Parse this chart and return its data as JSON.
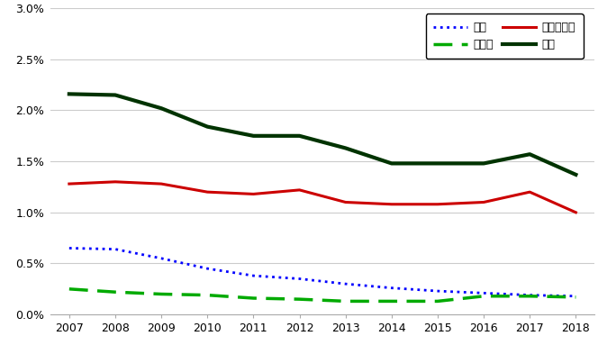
{
  "years": [
    2007,
    2008,
    2009,
    2010,
    2011,
    2012,
    2013,
    2014,
    2015,
    2016,
    2017,
    2018
  ],
  "tosan": [
    0.0065,
    0.0064,
    0.0055,
    0.0045,
    0.0038,
    0.0035,
    0.003,
    0.0026,
    0.0023,
    0.0021,
    0.0019,
    0.0018
  ],
  "jishu": [
    0.0128,
    0.013,
    0.0128,
    0.012,
    0.0118,
    0.0122,
    0.011,
    0.0108,
    0.0108,
    0.011,
    0.012,
    0.01
  ],
  "merged": [
    0.0025,
    0.0022,
    0.002,
    0.0019,
    0.0016,
    0.0015,
    0.0013,
    0.0013,
    0.0013,
    0.0018,
    0.0018,
    0.0017
  ],
  "total": [
    0.0216,
    0.0215,
    0.0202,
    0.0184,
    0.0175,
    0.0175,
    0.0163,
    0.0148,
    0.0148,
    0.0148,
    0.0157,
    0.0137
  ],
  "tosan_color": "#0000FF",
  "jishu_color": "#CC0000",
  "merged_color": "#00AA00",
  "total_color": "#003300",
  "ylim": [
    0.0,
    0.03
  ],
  "yticks": [
    0.0,
    0.005,
    0.01,
    0.015,
    0.02,
    0.025,
    0.03
  ],
  "legend_tosan": "倒産",
  "legend_jishu": "自主的退出",
  "legend_merged": "被合併",
  "legend_total": "合計",
  "background_color": "#FFFFFF",
  "grid_color": "#CCCCCC",
  "spine_color": "#AAAAAA"
}
